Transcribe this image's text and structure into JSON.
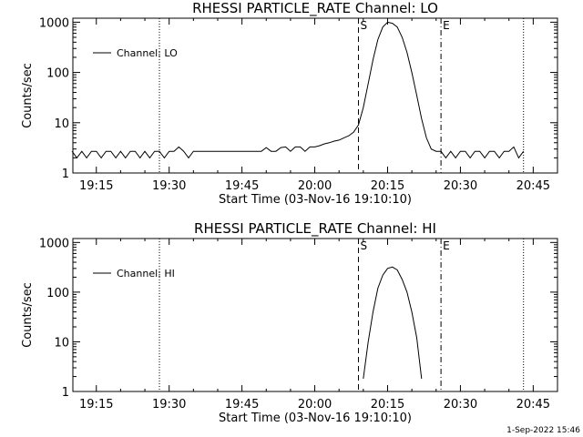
{
  "timestamp": "1-Sep-2022 15:46",
  "chart_data": [
    {
      "type": "line",
      "title": "RHESSI PARTICLE_RATE Channel: LO",
      "xlabel": "Start Time (03-Nov-16 19:10:10)",
      "ylabel": "Counts/sec",
      "y_scale": "log",
      "ylim": [
        1,
        1200
      ],
      "xlim": [
        "19:10:10",
        "20:50:00"
      ],
      "x_ticks": [
        "19:15",
        "19:30",
        "19:45",
        "20:00",
        "20:15",
        "20:30",
        "20:45"
      ],
      "y_ticks": [
        "1",
        "10",
        "100",
        "1000"
      ],
      "legend": "top-left",
      "markers": [
        {
          "label": "",
          "time": "19:28",
          "style": "dotted"
        },
        {
          "label": "S",
          "time": "20:09",
          "style": "dashed"
        },
        {
          "label": "E",
          "time": "20:26",
          "style": "dashdot"
        },
        {
          "label": "",
          "time": "20:43",
          "style": "dotted"
        }
      ],
      "series": [
        {
          "name": "Channel: LO",
          "x": [
            "19:10",
            "19:11",
            "19:12",
            "19:13",
            "19:14",
            "19:15",
            "19:16",
            "19:17",
            "19:18",
            "19:19",
            "19:20",
            "19:21",
            "19:22",
            "19:23",
            "19:24",
            "19:25",
            "19:26",
            "19:27",
            "19:28",
            "19:29",
            "19:30",
            "19:31",
            "19:32",
            "19:33",
            "19:34",
            "19:35",
            "19:36",
            "19:37",
            "19:38",
            "19:39",
            "19:40",
            "19:41",
            "19:42",
            "19:43",
            "19:44",
            "19:45",
            "19:46",
            "19:47",
            "19:48",
            "19:49",
            "19:50",
            "19:51",
            "19:52",
            "19:53",
            "19:54",
            "19:55",
            "19:56",
            "19:57",
            "19:58",
            "19:59",
            "20:00",
            "20:01",
            "20:02",
            "20:03",
            "20:04",
            "20:05",
            "20:06",
            "20:07",
            "20:08",
            "20:09",
            "20:10",
            "20:11",
            "20:12",
            "20:13",
            "20:14",
            "20:15",
            "20:16",
            "20:17",
            "20:18",
            "20:19",
            "20:20",
            "20:21",
            "20:22",
            "20:23",
            "20:24",
            "20:25",
            "20:26",
            "20:27",
            "20:28",
            "20:29",
            "20:30",
            "20:31",
            "20:32",
            "20:33",
            "20:34",
            "20:35",
            "20:36",
            "20:37",
            "20:38",
            "20:39",
            "20:40",
            "20:41",
            "20:42",
            "20:43"
          ],
          "y": [
            2.7,
            2.0,
            2.7,
            2.0,
            2.7,
            2.7,
            2.0,
            2.7,
            2.7,
            2.0,
            2.7,
            2.0,
            2.7,
            2.7,
            2.0,
            2.7,
            2.0,
            2.7,
            2.7,
            2.0,
            2.7,
            2.7,
            3.3,
            2.7,
            2.0,
            2.7,
            2.7,
            2.7,
            2.7,
            2.7,
            2.7,
            2.7,
            2.7,
            2.7,
            2.7,
            2.7,
            2.7,
            2.7,
            2.7,
            2.7,
            3.2,
            2.7,
            2.7,
            3.2,
            3.3,
            2.7,
            3.3,
            3.3,
            2.7,
            3.3,
            3.3,
            3.5,
            3.8,
            4.0,
            4.3,
            4.5,
            5.0,
            5.5,
            6.5,
            9.0,
            20,
            60,
            180,
            450,
            800,
            1000,
            950,
            800,
            500,
            250,
            100,
            35,
            12,
            5,
            3,
            2.7,
            2.7,
            2.0,
            2.7,
            2.0,
            2.7,
            2.7,
            2.0,
            2.7,
            2.7,
            2.0,
            2.7,
            2.7,
            2.0,
            2.7,
            2.7,
            3.3,
            2.0,
            2.7
          ]
        }
      ]
    },
    {
      "type": "line",
      "title": "RHESSI PARTICLE_RATE Channel: HI",
      "xlabel": "Start Time (03-Nov-16 19:10:10)",
      "ylabel": "Counts/sec",
      "y_scale": "log",
      "ylim": [
        1,
        1200
      ],
      "xlim": [
        "19:10:10",
        "20:50:00"
      ],
      "x_ticks": [
        "19:15",
        "19:30",
        "19:45",
        "20:00",
        "20:15",
        "20:30",
        "20:45"
      ],
      "y_ticks": [
        "1",
        "10",
        "100",
        "1000"
      ],
      "legend": "top-left",
      "markers": [
        {
          "label": "",
          "time": "19:28",
          "style": "dotted"
        },
        {
          "label": "S",
          "time": "20:09",
          "style": "dashed"
        },
        {
          "label": "E",
          "time": "20:26",
          "style": "dashdot"
        },
        {
          "label": "",
          "time": "20:43",
          "style": "dotted"
        }
      ],
      "series": [
        {
          "name": "Channel: HI",
          "x": [
            "20:10",
            "20:11",
            "20:12",
            "20:13",
            "20:14",
            "20:15",
            "20:16",
            "20:17",
            "20:18",
            "20:19",
            "20:20",
            "20:21",
            "20:22"
          ],
          "y": [
            1.8,
            10,
            40,
            120,
            220,
            300,
            320,
            280,
            180,
            100,
            40,
            12,
            1.8
          ]
        }
      ]
    }
  ]
}
